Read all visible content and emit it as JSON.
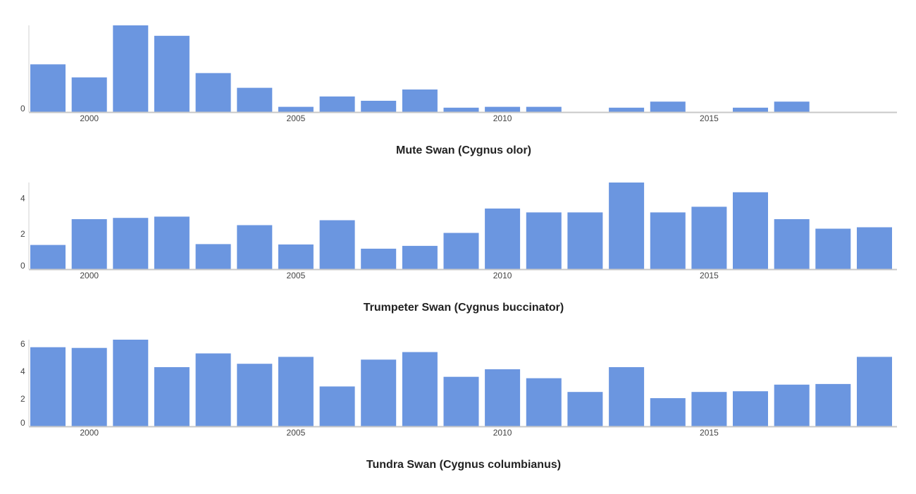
{
  "chart_data": [
    {
      "type": "bar",
      "title": "Mute Swan (Cygnus olor)",
      "xlabel": "",
      "ylabel": "",
      "x": [
        1999,
        2000,
        2001,
        2002,
        2003,
        2004,
        2005,
        2006,
        2007,
        2008,
        2009,
        2010,
        2011,
        2012,
        2013,
        2014,
        2015,
        2016,
        2017,
        2018,
        2019
      ],
      "values": [
        0.55,
        0.4,
        1.0,
        0.88,
        0.45,
        0.28,
        0.06,
        0.18,
        0.13,
        0.26,
        0.05,
        0.06,
        0.06,
        0,
        0.05,
        0.12,
        0,
        0.05,
        0.12,
        0,
        0
      ],
      "ylim": [
        0,
        1
      ],
      "y_ticks": [
        0
      ],
      "x_ticks": [
        2000,
        2005,
        2010,
        2015
      ],
      "bar_color": "#6b96e0",
      "grid": false
    },
    {
      "type": "bar",
      "title": "Trumpeter Swan (Cygnus buccinator)",
      "xlabel": "",
      "ylabel": "",
      "x": [
        1999,
        2000,
        2001,
        2002,
        2003,
        2004,
        2005,
        2006,
        2007,
        2008,
        2009,
        2010,
        2011,
        2012,
        2013,
        2014,
        2015,
        2016,
        2017,
        2018,
        2019
      ],
      "values": [
        1.37,
        2.83,
        2.9,
        2.97,
        1.42,
        2.49,
        1.4,
        2.77,
        1.16,
        1.32,
        2.05,
        3.43,
        3.21,
        3.21,
        4.9,
        3.21,
        3.53,
        4.35,
        2.83,
        2.29,
        2.37
      ],
      "ylim": [
        0,
        4.9
      ],
      "y_ticks": [
        0,
        2,
        4
      ],
      "x_ticks": [
        2000,
        2005,
        2010,
        2015
      ],
      "bar_color": "#6b96e0",
      "grid": false
    },
    {
      "type": "bar",
      "title": "Tundra Swan (Cygnus columbianus)",
      "xlabel": "",
      "ylabel": "",
      "x": [
        1999,
        2000,
        2001,
        2002,
        2003,
        2004,
        2005,
        2006,
        2007,
        2008,
        2009,
        2010,
        2011,
        2012,
        2013,
        2014,
        2015,
        2016,
        2017,
        2018,
        2019
      ],
      "values": [
        5.75,
        5.7,
        6.3,
        4.3,
        5.3,
        4.55,
        5.05,
        2.9,
        4.85,
        5.4,
        3.6,
        4.15,
        3.5,
        2.5,
        4.3,
        2.05,
        2.5,
        2.55,
        3.03,
        3.08,
        5.05
      ],
      "ylim": [
        0,
        6.3
      ],
      "y_ticks": [
        0,
        2,
        4,
        6
      ],
      "x_ticks": [
        2000,
        2005,
        2010,
        2015
      ],
      "bar_color": "#6b96e0",
      "grid": false
    }
  ]
}
